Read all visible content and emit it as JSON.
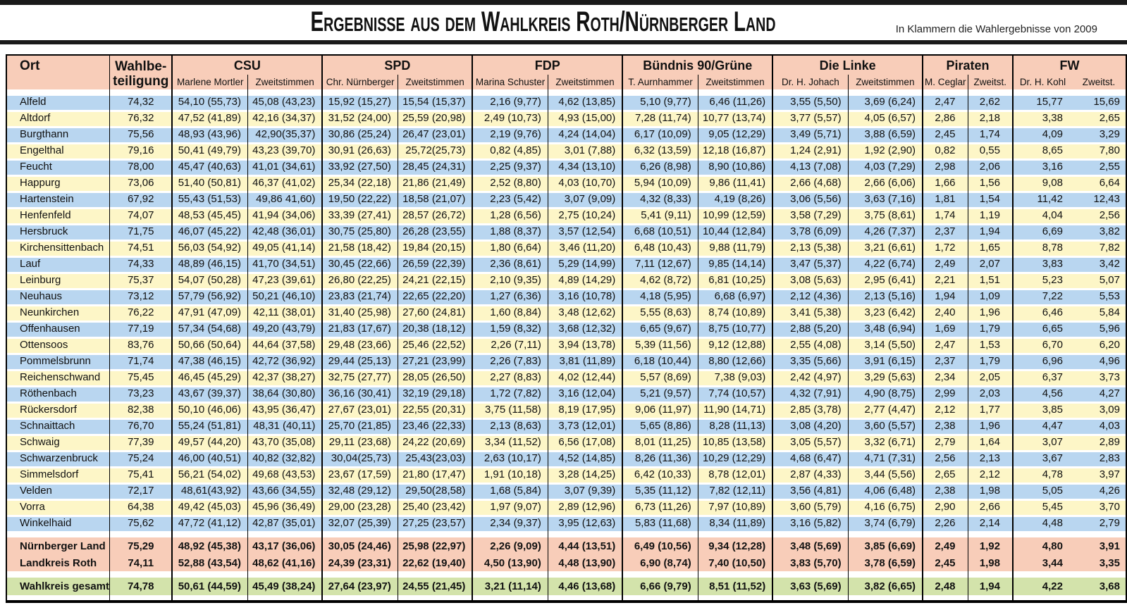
{
  "page": {
    "title": "Ergebnisse aus dem Wahlkreis Roth/Nürnberger Land",
    "note": "In Klammern die Wahlergebnisse von 2009"
  },
  "colors": {
    "header_band": "#f8cdb9",
    "row_blue": "#b9d6f0",
    "row_yellow": "#fdf6c7",
    "summary_band": "#f8cdb9",
    "total_band": "#d3e3ab",
    "rule_black": "#1a1a1a"
  },
  "columns": {
    "ort": "Ort",
    "wahlbeteiligung_line1": "Wahlbe-",
    "wahlbeteiligung_line2": "teiligung"
  },
  "parties": [
    {
      "name": "CSU",
      "candidate": "Marlene Mortler",
      "second": "Zweitstimmen"
    },
    {
      "name": "SPD",
      "candidate": "Chr. Nürnberger",
      "second": "Zweitstimmen"
    },
    {
      "name": "FDP",
      "candidate": "Marina Schuster",
      "second": "Zweitstimmen"
    },
    {
      "name": "Bündnis 90/Grüne",
      "candidate": "T. Aurnhammer",
      "second": "Zweitstimmen"
    },
    {
      "name": "Die Linke",
      "candidate": "Dr. H. Johach",
      "second": "Zweitstimmen"
    },
    {
      "name": "Piraten",
      "candidate": "M. Ceglar",
      "second": "Zweitst."
    },
    {
      "name": "FW",
      "candidate": "Dr. H. Kohl",
      "second": "Zweitst."
    }
  ],
  "rows": [
    {
      "ort": "Alfeld",
      "wb": "74,32",
      "cells": [
        "54,10 (55,73)",
        "45,08 (43,23)",
        "15,92 (15,27)",
        "15,54 (15,37)",
        "2,16 (9,77)",
        "4,62 (13,85)",
        "5,10 (9,77)",
        "6,46 (11,26)",
        "3,55 (5,50)",
        "3,69 (6,24)",
        "2,47",
        "2,62",
        "15,77",
        "15,69"
      ]
    },
    {
      "ort": "Altdorf",
      "wb": "76,32",
      "cells": [
        "47,52 (41,89)",
        "42,16 (34,37)",
        "31,52 (24,00)",
        "25,59 (20,98)",
        "2,49 (10,73)",
        "4,93 (15,00)",
        "7,28 (11,74)",
        "10,77 (13,74)",
        "3,77 (5,57)",
        "4,05 (6,57)",
        "2,86",
        "2,18",
        "3,38",
        "2,65"
      ]
    },
    {
      "ort": "Burgthann",
      "wb": "75,56",
      "cells": [
        "48,93 (43,96)",
        "42,90(35,37)",
        "30,86 (25,24)",
        "26,47 (23,01)",
        "2,19 (9,76)",
        "4,24 (14,04)",
        "6,17 (10,09)",
        "9,05 (12,29)",
        "3,49 (5,71)",
        "3,88 (6,59)",
        "2,45",
        "1,74",
        "4,09",
        "3,29"
      ]
    },
    {
      "ort": "Engelthal",
      "wb": "79,16",
      "cells": [
        "50,41 (49,79)",
        "43,23 (39,70)",
        "30,91 (26,63)",
        "25,72(25,73)",
        "0,82 (4,85)",
        "3,01 (7,88)",
        "6,32 (13,59)",
        "12,18 (16,87)",
        "1,24 (2,91)",
        "1,92 (2,90)",
        "0,82",
        "0,55",
        "8,65",
        "7,80"
      ]
    },
    {
      "ort": "Feucht",
      "wb": "78,00",
      "cells": [
        "45,47 (40,63)",
        "41,01 (34,61)",
        "33,92 (27,50)",
        "28,45 (24,31)",
        "2,25 (9,37)",
        "4,34 (13,10)",
        "6,26 (8,98)",
        "8,90 (10,86)",
        "4,13 (7,08)",
        "4,03 (7,29)",
        "2,98",
        "2,06",
        "3,16",
        "2,55"
      ]
    },
    {
      "ort": "Happurg",
      "wb": "73,06",
      "cells": [
        "51,40 (50,81)",
        "46,37 (41,02)",
        "25,34 (22,18)",
        "21,86 (21,49)",
        "2,52 (8,80)",
        "4,03 (10,70)",
        "5,94 (10,09)",
        "9,86 (11,41)",
        "2,66 (4,68)",
        "2,66 (6,06)",
        "1,66",
        "1,56",
        "9,08",
        "6,64"
      ]
    },
    {
      "ort": "Hartenstein",
      "wb": "67,92",
      "cells": [
        "55,43 (51,53)",
        "49,86 41,60)",
        "19,50 (22,22)",
        "18,58 (21,07)",
        "2,23 (5,42)",
        "3,07 (9,09)",
        "4,32 (8,33)",
        "4,19 (8,26)",
        "3,06 (5,56)",
        "3,63 (7,16)",
        "1,81",
        "1,54",
        "11,42",
        "12,43"
      ]
    },
    {
      "ort": "Henfenfeld",
      "wb": "74,07",
      "cells": [
        "48,53 (45,45)",
        "41,94 (34,06)",
        "33,39 (27,41)",
        "28,57 (26,72)",
        "1,28 (6,56)",
        "2,75 (10,24)",
        "5,41 (9,11)",
        "10,99 (12,59)",
        "3,58 (7,29)",
        "3,75 (8,61)",
        "1,74",
        "1,19",
        "4,04",
        "2,56"
      ]
    },
    {
      "ort": "Hersbruck",
      "wb": "71,75",
      "cells": [
        "46,07 (45,22)",
        "42,48 (36,01)",
        "30,75 (25,80)",
        "26,28 (23,55)",
        "1,88 (8,37)",
        "3,57 (12,54)",
        "6,68 (10,51)",
        "10,44 (12,84)",
        "3,78 (6,09)",
        "4,26 (7,37)",
        "2,37",
        "1,94",
        "6,69",
        "3,82"
      ]
    },
    {
      "ort": "Kirchensittenbach",
      "wb": "74,51",
      "cells": [
        "56,03 (54,92)",
        "49,05 (41,14)",
        "21,58 (18,42)",
        "19,84 (20,15)",
        "1,80 (6,64)",
        "3,46 (11,20)",
        "6,48 (10,43)",
        "9,88 (11,79)",
        "2,13 (5,38)",
        "3,21 (6,61)",
        "1,72",
        "1,65",
        "8,78",
        "7,82"
      ]
    },
    {
      "ort": "Lauf",
      "wb": "74,33",
      "cells": [
        "48,89 (46,15)",
        "41,70 (34,51)",
        "30,45 (22,66)",
        "26,59 (22,39)",
        "2,36 (8,61)",
        "5,29 (14,99)",
        "7,11 (12,67)",
        "9,85 (14,14)",
        "3,47 (5,37)",
        "4,22 (6,74)",
        "2,49",
        "2,07",
        "3,83",
        "3,42"
      ]
    },
    {
      "ort": "Leinburg",
      "wb": "75,37",
      "cells": [
        "54,07 (50,28)",
        "47,23 (39,61)",
        "26,80 (22,25)",
        "24,21 (22,15)",
        "2,10 (9,35)",
        "4,89 (14,29)",
        "4,62 (8,72)",
        "6,81 (10,25)",
        "3,08 (5,63)",
        "2,95 (6,41)",
        "2,21",
        "1,51",
        "5,23",
        "5,07"
      ]
    },
    {
      "ort": "Neuhaus",
      "wb": "73,12",
      "cells": [
        "57,79 (56,92)",
        "50,21 (46,10)",
        "23,83 (21,74)",
        "22,65 (22,20)",
        "1,27 (6,36)",
        "3,16 (10,78)",
        "4,18 (5,95)",
        "6,68 (6,97)",
        "2,12 (4,36)",
        "2,13 (5,16)",
        "1,94",
        "1,09",
        "7,22",
        "5,53"
      ]
    },
    {
      "ort": "Neunkirchen",
      "wb": "76,22",
      "cells": [
        "47,91 (47,09)",
        "42,11 (38,01)",
        "31,40 (25,98)",
        "27,60 (24,81)",
        "1,60 (8,84)",
        "3,48 (12,62)",
        "5,55 (8,63)",
        "8,74 (10,89)",
        "3,41 (5,38)",
        "3,23 (6,42)",
        "2,40",
        "1,96",
        "6,46",
        "5,84"
      ]
    },
    {
      "ort": "Offenhausen",
      "wb": "77,19",
      "cells": [
        "57,34 (54,68)",
        "49,20 (43,79)",
        "21,83 (17,67)",
        "20,38 (18,12)",
        "1,59 (8,32)",
        "3,68 (12,32)",
        "6,65 (9,67)",
        "8,75 (10,77)",
        "2,88 (5,20)",
        "3,48 (6,94)",
        "1,69",
        "1,79",
        "6,65",
        "5,96"
      ]
    },
    {
      "ort": "Ottensoos",
      "wb": "83,76",
      "cells": [
        "50,66 (50,64)",
        "44,64 (37,58)",
        "29,48 (23,66)",
        "25,46 (22,52)",
        "2,26 (7,11)",
        "3,94 (13,78)",
        "5,39 (11,56)",
        "9,12 (12,88)",
        "2,55 (4,08)",
        "3,14 (5,50)",
        "2,47",
        "1,53",
        "6,70",
        "6,20"
      ]
    },
    {
      "ort": "Pommelsbrunn",
      "wb": "71,74",
      "cells": [
        "47,38 (46,15)",
        "42,72 (36,92)",
        "29,44 (25,13)",
        "27,21 (23,99)",
        "2,26 (7,83)",
        "3,81 (11,89)",
        "6,18 (10,44)",
        "8,80 (12,66)",
        "3,35 (5,66)",
        "3,91 (6,15)",
        "2,37",
        "1,79",
        "6,96",
        "4,96"
      ]
    },
    {
      "ort": "Reichenschwand",
      "wb": "75,45",
      "cells": [
        "46,45 (45,29)",
        "42,37 (38,27)",
        "32,75 (27,77)",
        "28,05 (26,50)",
        "2,27 (8,83)",
        "4,02 (12,44)",
        "5,57 (8,69)",
        "7,38 (9,03)",
        "2,42 (4,97)",
        "3,29 (5,63)",
        "2,34",
        "2,05",
        "6,37",
        "3,73"
      ]
    },
    {
      "ort": "Röthenbach",
      "wb": "73,23",
      "cells": [
        "43,67 (39,37)",
        "38,64 (30,80)",
        "36,16 (30,41)",
        "32,19 (29,18)",
        "1,72 (7,82)",
        "3,16 (12,04)",
        "5,21 (9,57)",
        "7,74 (10,57)",
        "4,32 (7,91)",
        "4,90 (8,75)",
        "2,99",
        "2,03",
        "4,56",
        "4,27"
      ]
    },
    {
      "ort": "Rückersdorf",
      "wb": "82,38",
      "cells": [
        "50,10 (46,06)",
        "43,95 (36,47)",
        "27,67 (23,01)",
        "22,55 (20,31)",
        "3,75 (11,58)",
        "8,19 (17,95)",
        "9,06 (11,97)",
        "11,90 (14,71)",
        "2,85 (3,78)",
        "2,77 (4,47)",
        "2,12",
        "1,77",
        "3,85",
        "3,09"
      ]
    },
    {
      "ort": "Schnaittach",
      "wb": "76,70",
      "cells": [
        "55,24 (51,81)",
        "48,31 (40,11)",
        "25,70 (21,85)",
        "23,46 (22,33)",
        "2,13 (8,63)",
        "3,73 (12,01)",
        "5,65 (8,86)",
        "8,28 (11,13)",
        "3,08 (4,20)",
        "3,60 (5,57)",
        "2,38",
        "1,96",
        "4,47",
        "4,03"
      ]
    },
    {
      "ort": "Schwaig",
      "wb": "77,39",
      "cells": [
        "49,57 (44,20)",
        "43,70 (35,08)",
        "29,11 (23,68)",
        "24,22 (20,69)",
        "3,34 (11,52)",
        "6,56 (17,08)",
        "8,01 (11,25)",
        "10,85 (13,58)",
        "3,05 (5,57)",
        "3,32 (6,71)",
        "2,79",
        "1,64",
        "3,07",
        "2,89"
      ]
    },
    {
      "ort": "Schwarzenbruck",
      "wb": "75,24",
      "cells": [
        "46,00 (40,51)",
        "40,82 (32,82)",
        "30,04(25,73)",
        "25,43(23,03)",
        "2,63 (10,17)",
        "4,52 (14,85)",
        "8,26 (11,36)",
        "10,29 (12,29)",
        "4,68 (6,47)",
        "4,71 (7,31)",
        "2,56",
        "2,13",
        "3,67",
        "2,83"
      ]
    },
    {
      "ort": "Simmelsdorf",
      "wb": "75,41",
      "cells": [
        "56,21 (54,02)",
        "49,68 (43,53)",
        "23,67 (17,59)",
        "21,80 (17,47)",
        "1,91 (10,18)",
        "3,28 (14,25)",
        "6,42 (10,33)",
        "8,78 (12,01)",
        "2,87 (4,33)",
        "3,44 (5,56)",
        "2,65",
        "2,12",
        "4,78",
        "3,97"
      ]
    },
    {
      "ort": "Velden",
      "wb": "72,17",
      "cells": [
        "48,61(43,92)",
        "43,66 (34,55)",
        "32,48 (29,12)",
        "29,50(28,58)",
        "1,68 (5,84)",
        "3,07 (9,39)",
        "5,35 (11,12)",
        "7,82 (12,11)",
        "3,56 (4,81)",
        "4,06 (6,48)",
        "2,38",
        "1,98",
        "5,05",
        "4,26"
      ]
    },
    {
      "ort": "Vorra",
      "wb": "64,38",
      "cells": [
        "49,42 (45,03)",
        "45,96 (36,49)",
        "29,00 (23,28)",
        "25,40 (23,42)",
        "1,97 (9,07)",
        "2,89 (12,96)",
        "6,73 (11,26)",
        "7,97 (10,89)",
        "3,60 (5,79)",
        "4,16 (6,75)",
        "2,90",
        "2,66",
        "5,45",
        "3,70"
      ]
    },
    {
      "ort": "Winkelhaid",
      "wb": "75,62",
      "cells": [
        "47,72 (41,12)",
        "42,87 (35,01)",
        "32,07 (25,39)",
        "27,25 (23,57)",
        "2,34 (9,37)",
        "3,95 (12,63)",
        "5,83 (11,68)",
        "8,34 (11,89)",
        "3,16 (5,82)",
        "3,74 (6,79)",
        "2,26",
        "2,14",
        "4,48",
        "2,79"
      ]
    }
  ],
  "summary_rows": [
    {
      "ort": "Nürnberger Land",
      "wb": "75,29",
      "cells": [
        "48,92 (45,38)",
        "43,17 (36,06)",
        "30,05 (24,46)",
        "25,98 (22,97)",
        "2,26 (9,09)",
        "4,44 (13,51)",
        "6,49 (10,56)",
        "9,34 (12,28)",
        "3,48 (5,69)",
        "3,85 (6,69)",
        "2,49",
        "1,92",
        "4,80",
        "3,91"
      ]
    },
    {
      "ort": "Landkreis Roth",
      "wb": "74,11",
      "cells": [
        "52,88 (43,54)",
        "48,62 (41,16)",
        "24,39 (23,31)",
        "22,62 (19,40)",
        "4,50 (13,90)",
        "4,48 (13,90)",
        "6,90 (8,74)",
        "7,40 (10,50)",
        "3,83 (5,70)",
        "3,78 (6,59)",
        "2,45",
        "1,98",
        "3,44",
        "3,35"
      ]
    }
  ],
  "total_row": {
    "ort": "Wahlkreis gesamt",
    "wb": "74,78",
    "cells": [
      "50,61 (44,59)",
      "45,49 (38,24)",
      "27,64 (23,97)",
      "24,55 (21,45)",
      "3,21 (11,14)",
      "4,46 (13,68)",
      "6,66 (9,79)",
      "8,51 (11,52)",
      "3,63 (5,69)",
      "3,82 (6,65)",
      "2,48",
      "1,94",
      "4,22",
      "3,68"
    ]
  }
}
